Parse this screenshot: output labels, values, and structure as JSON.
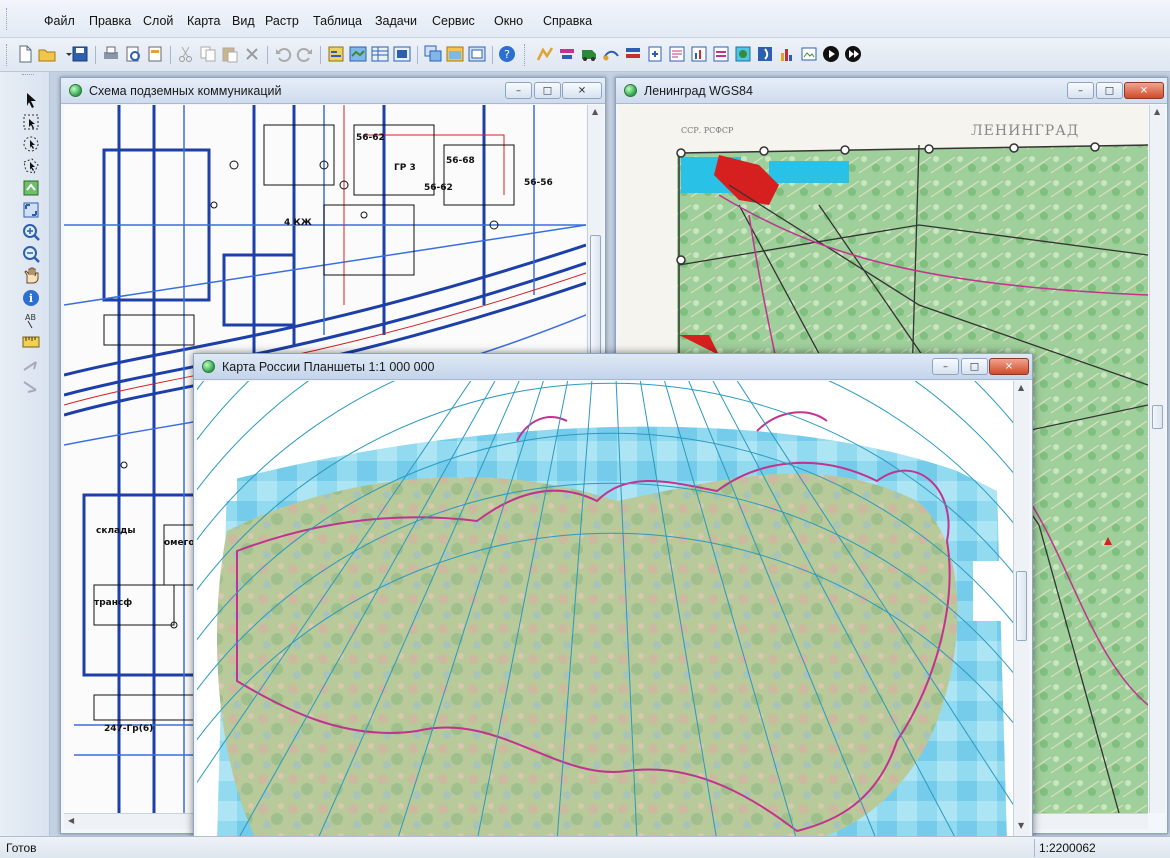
{
  "menu": [
    "Файл",
    "Правка",
    "Слой",
    "Карта",
    "Вид",
    "Растр",
    "Таблица",
    "Задачи",
    "Сервис",
    "Окно",
    "Справка"
  ],
  "toolbar_icons": [
    "new-document-icon",
    "open-folder-icon",
    "save-icon",
    "print-icon",
    "print-preview-icon",
    "page-setup-icon",
    "cut-icon",
    "copy-icon",
    "paste-icon",
    "delete-icon",
    "undo-icon",
    "redo-icon",
    "layer-properties-icon",
    "map-window-icon",
    "table-window-icon",
    "layout-window-icon",
    "cascade-windows-icon",
    "tile-windows-icon",
    "arrange-icon",
    "help-icon",
    "geocode-icon",
    "route-icon",
    "vehicle-icon",
    "tracking-icon",
    "stack-icon",
    "export-icon",
    "report-icon",
    "chart-icon",
    "legend-icon",
    "globe-icon",
    "raster-icon",
    "histogram-icon",
    "image-icon",
    "play-icon",
    "stop-icon"
  ],
  "tool_icons": [
    "arrow-select-icon",
    "rectangle-select-icon",
    "radius-select-icon",
    "polygon-select-icon",
    "layer-control-icon",
    "full-extent-icon",
    "zoom-in-icon",
    "zoom-out-icon",
    "pan-hand-icon",
    "info-icon",
    "label-icon",
    "ruler-icon",
    "edit-node-icon",
    "edit-vertex-icon"
  ],
  "windows": {
    "utilities": {
      "title": "Схема подземных коммуникаций"
    },
    "leningrad": {
      "title": "Ленинград WGS84",
      "map_label_1": "ЛЕНИНГРАД",
      "map_label_2": "ССР. РСФСР"
    },
    "russia": {
      "title": "Карта России Планшеты 1:1 000 000"
    }
  },
  "utility_labels": [
    "56-62",
    "56-68",
    "56-62",
    "56-56",
    "ГР 3",
    "4 КЖ",
    "склады",
    "омегова",
    "трансф",
    "247-Гр(6)"
  ],
  "window_buttons": {
    "minimize": "–",
    "maximize": "□",
    "close": "✕"
  },
  "status": {
    "text": "Готов",
    "scale": "1:2200062"
  },
  "colors": {
    "accent": "#2d5fb0",
    "cyan": "#4dc6e8",
    "pink": "#c2338f",
    "red_close": "#cf4b2b"
  }
}
